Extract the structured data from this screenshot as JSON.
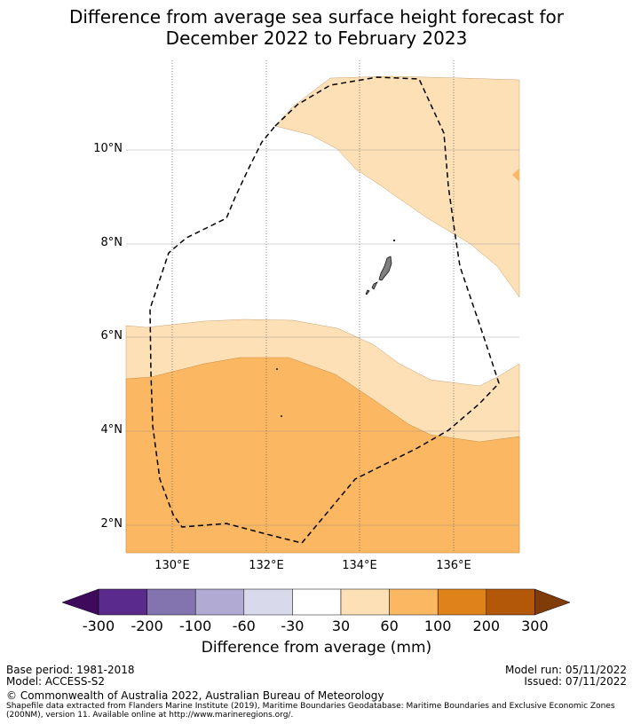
{
  "title_line1": "Difference from average sea surface height forecast for",
  "title_line2": "December 2022 to February 2023",
  "map": {
    "lat_labels": [
      "10°N",
      "8°N",
      "6°N",
      "4°N",
      "2°N"
    ],
    "lon_labels": [
      "130°E",
      "132°E",
      "134°E",
      "136°E"
    ],
    "colors": {
      "light_orange": "#fde0b6",
      "orange": "#fbb762",
      "land": "#7f7f7f",
      "eez_line": "#000000"
    }
  },
  "colorbar": {
    "ticks": [
      "-300",
      "-200",
      "-100",
      "-60",
      "-30",
      "30",
      "60",
      "100",
      "200",
      "300"
    ],
    "colors": [
      "#3f0a5c",
      "#5a2a8c",
      "#8374b0",
      "#b1aad2",
      "#d9d9ec",
      "#ffffff",
      "#fde0b6",
      "#fbb762",
      "#e0821a",
      "#b35808",
      "#7f3b08"
    ],
    "label": "Difference from average (mm)"
  },
  "footer": {
    "base_period": "Base period: 1981-2018",
    "model": "Model: ACCESS-S2",
    "model_run": "Model run: 05/11/2022",
    "issued": "Issued: 07/11/2022",
    "copyright": "© Commonwealth of Australia 2022, Australian Bureau of Meteorology",
    "source_line1": "Shapefile data extracted from Flanders Marine Institute (2019), Maritime Boundaries Geodatabase: Maritime Boundaries and Exclusive Economic Zones",
    "source_line2": "(200NM), version 11. Available online at http://www.marineregions.org/."
  }
}
